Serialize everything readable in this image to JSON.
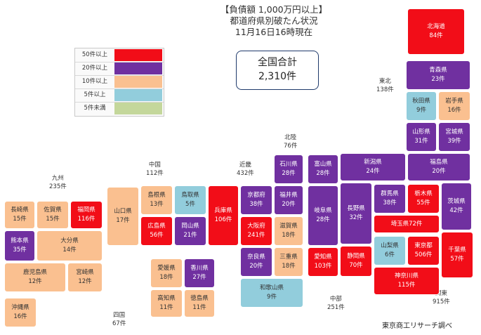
{
  "title": {
    "line1": "【負債額 1,000万円以上】",
    "line2": "都道府県別破たん状況",
    "line3": "11月16日16時現在"
  },
  "total": {
    "label": "全国合計",
    "value": "2,310件"
  },
  "legend": [
    {
      "label": "50件以上",
      "color": "#f20d18"
    },
    {
      "label": "20件以上",
      "color": "#7030a0"
    },
    {
      "label": "10件以上",
      "color": "#fac090"
    },
    {
      "label": "5件以上",
      "color": "#92cddc"
    },
    {
      "label": "5件未満",
      "color": "#c4d79b"
    }
  ],
  "regions": [
    {
      "id": "tohoku",
      "name": "東北",
      "count": "138件"
    },
    {
      "id": "hokuriku",
      "name": "北陸",
      "count": "76件"
    },
    {
      "id": "kinki",
      "name": "近畿",
      "count": "432件"
    },
    {
      "id": "chugoku",
      "name": "中国",
      "count": "112件"
    },
    {
      "id": "kyushu",
      "name": "九州",
      "count": "235件"
    },
    {
      "id": "shikoku",
      "name": "四国",
      "count": "67件"
    },
    {
      "id": "chubu",
      "name": "中部",
      "count": "251件"
    },
    {
      "id": "kanto",
      "name": "関東",
      "count": "915件"
    }
  ],
  "prefectures": [
    {
      "id": "hokkaido",
      "name": "北海道",
      "count": "84件"
    },
    {
      "id": "aomori",
      "name": "青森県",
      "count": "23件"
    },
    {
      "id": "akita",
      "name": "秋田県",
      "count": "9件"
    },
    {
      "id": "iwate",
      "name": "岩手県",
      "count": "16件"
    },
    {
      "id": "yamagata",
      "name": "山形県",
      "count": "31件"
    },
    {
      "id": "miyagi",
      "name": "宮城県",
      "count": "39件"
    },
    {
      "id": "niigata",
      "name": "新潟県",
      "count": "24件"
    },
    {
      "id": "fukushima",
      "name": "福島県",
      "count": "20件"
    },
    {
      "id": "ishikawa",
      "name": "石川県",
      "count": "28件"
    },
    {
      "id": "toyama",
      "name": "富山県",
      "count": "28件"
    },
    {
      "id": "fukui",
      "name": "福井県",
      "count": "20件"
    },
    {
      "id": "kyoto",
      "name": "京都府",
      "count": "38件"
    },
    {
      "id": "hyogo",
      "name": "兵庫県",
      "count": "106件"
    },
    {
      "id": "osaka",
      "name": "大阪府",
      "count": "241件"
    },
    {
      "id": "shiga",
      "name": "滋賀県",
      "count": "18件"
    },
    {
      "id": "nara",
      "name": "奈良県",
      "count": "20件"
    },
    {
      "id": "mie",
      "name": "三重県",
      "count": "18件"
    },
    {
      "id": "wakayama",
      "name": "和歌山県",
      "count": "9件"
    },
    {
      "id": "gifu",
      "name": "岐阜県",
      "count": "28件"
    },
    {
      "id": "nagano",
      "name": "長野県",
      "count": "32件"
    },
    {
      "id": "aichi",
      "name": "愛知県",
      "count": "103件"
    },
    {
      "id": "shizuoka",
      "name": "静岡県",
      "count": "70件"
    },
    {
      "id": "gunma",
      "name": "群馬県",
      "count": "38件"
    },
    {
      "id": "tochigi",
      "name": "栃木県",
      "count": "55件"
    },
    {
      "id": "ibaraki",
      "name": "茨城県",
      "count": "42件"
    },
    {
      "id": "saitama",
      "name": "埼玉県",
      "count": "72件"
    },
    {
      "id": "yamanashi",
      "name": "山梨県",
      "count": "6件"
    },
    {
      "id": "tokyo",
      "name": "東京都",
      "count": "506件"
    },
    {
      "id": "chiba",
      "name": "千葉県",
      "count": "57件"
    },
    {
      "id": "kanagawa",
      "name": "神奈川県",
      "count": "115件"
    },
    {
      "id": "shimane",
      "name": "島根県",
      "count": "13件"
    },
    {
      "id": "tottori",
      "name": "鳥取県",
      "count": "5件"
    },
    {
      "id": "yamaguchi",
      "name": "山口県",
      "count": "17件"
    },
    {
      "id": "hiroshima",
      "name": "広島県",
      "count": "56件"
    },
    {
      "id": "okayama",
      "name": "岡山県",
      "count": "21件"
    },
    {
      "id": "nagasaki",
      "name": "長崎県",
      "count": "15件"
    },
    {
      "id": "saga",
      "name": "佐賀県",
      "count": "15件"
    },
    {
      "id": "fukuoka",
      "name": "福岡県",
      "count": "116件"
    },
    {
      "id": "kumamoto",
      "name": "熊本県",
      "count": "35件"
    },
    {
      "id": "oita",
      "name": "大分県",
      "count": "14件"
    },
    {
      "id": "kagoshima",
      "name": "鹿児島県",
      "count": "12件"
    },
    {
      "id": "miyazaki",
      "name": "宮崎県",
      "count": "12件"
    },
    {
      "id": "okinawa",
      "name": "沖縄県",
      "count": "16件"
    },
    {
      "id": "ehime",
      "name": "愛媛県",
      "count": "18件"
    },
    {
      "id": "kagawa",
      "name": "香川県",
      "count": "27件"
    },
    {
      "id": "kochi",
      "name": "高知県",
      "count": "11件"
    },
    {
      "id": "tokushima",
      "name": "徳島県",
      "count": "11件"
    }
  ],
  "credit": "東京商工リサーチ調べ"
}
